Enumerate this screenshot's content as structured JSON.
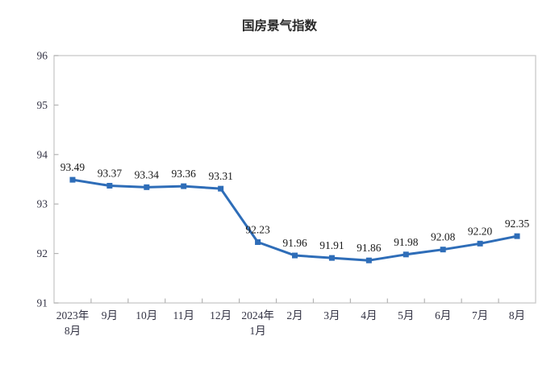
{
  "chart_data": {
    "type": "line",
    "title": "国房景气指数",
    "categories": [
      [
        "2023年",
        "8月"
      ],
      [
        "9月"
      ],
      [
        "10月"
      ],
      [
        "11月"
      ],
      [
        "12月"
      ],
      [
        "2024年",
        "1月"
      ],
      [
        "2月"
      ],
      [
        "3月"
      ],
      [
        "4月"
      ],
      [
        "5月"
      ],
      [
        "6月"
      ],
      [
        "7月"
      ],
      [
        "8月"
      ]
    ],
    "values": [
      93.49,
      93.37,
      93.34,
      93.36,
      93.31,
      92.23,
      91.96,
      91.91,
      91.86,
      91.98,
      92.08,
      92.2,
      92.35
    ],
    "data_labels": [
      "93.49",
      "93.37",
      "93.34",
      "93.36",
      "93.31",
      "92.23",
      "91.96",
      "91.91",
      "91.86",
      "91.98",
      "92.08",
      "92.20",
      "92.35"
    ],
    "ylim": [
      91,
      96
    ],
    "y_ticks": [
      "91",
      "92",
      "93",
      "94",
      "95",
      "96"
    ],
    "xlabel": "",
    "ylabel": "",
    "grid": false,
    "legend": "none",
    "line_color": "#2e6db8",
    "marker": "square",
    "marker_color": "#2e6db8",
    "border_color": "#c9c9c9",
    "tick_color": "#b3b3b3",
    "label_color": "#333344",
    "data_label_color": "#1a1a1a"
  }
}
